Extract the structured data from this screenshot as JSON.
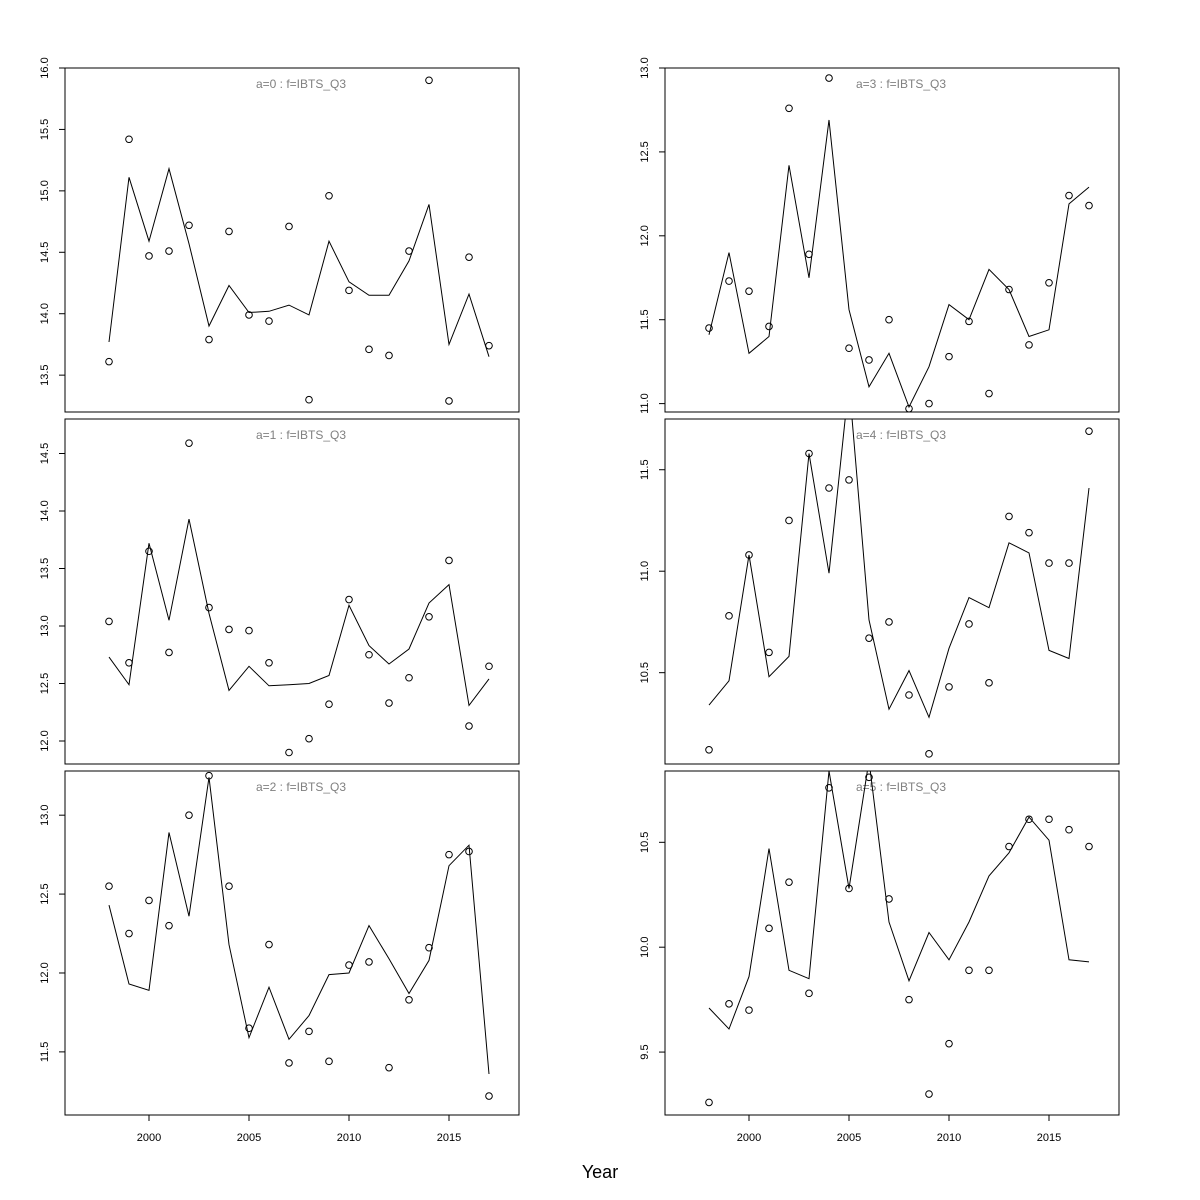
{
  "figure": {
    "xlabel": "Year"
  },
  "chart_data": [
    {
      "type": "line",
      "title": "a=0  :  f=IBTS_Q3",
      "x": [
        1998,
        1999,
        2000,
        2001,
        2002,
        2003,
        2004,
        2005,
        2006,
        2007,
        2008,
        2009,
        2010,
        2011,
        2012,
        2013,
        2014,
        2015,
        2016,
        2017
      ],
      "series": [
        {
          "style": "line",
          "values": [
            13.77,
            15.11,
            14.59,
            15.18,
            14.57,
            13.9,
            14.23,
            14.01,
            14.02,
            14.07,
            13.99,
            14.59,
            14.26,
            14.15,
            14.15,
            14.43,
            14.89,
            13.75,
            14.16,
            13.65
          ]
        },
        {
          "style": "points",
          "values": [
            13.61,
            15.42,
            14.47,
            14.51,
            14.72,
            13.79,
            14.67,
            13.99,
            13.94,
            14.71,
            13.3,
            14.96,
            14.19,
            13.71,
            13.66,
            14.51,
            15.9,
            13.29,
            14.46,
            13.74
          ]
        }
      ],
      "ylim": [
        13.2,
        16.0
      ],
      "yticks": [
        13.5,
        14.0,
        14.5,
        15.0,
        15.5,
        16.0
      ],
      "xticks": [
        2000,
        2005,
        2010,
        2015
      ],
      "show_xticks": false
    },
    {
      "type": "line",
      "title": "a=3  :  f=IBTS_Q3",
      "x": [
        1998,
        1999,
        2000,
        2001,
        2002,
        2003,
        2004,
        2005,
        2006,
        2007,
        2008,
        2009,
        2010,
        2011,
        2012,
        2013,
        2014,
        2015,
        2016,
        2017
      ],
      "series": [
        {
          "style": "line",
          "values": [
            11.41,
            11.9,
            11.3,
            11.4,
            12.42,
            11.75,
            12.69,
            11.56,
            11.1,
            11.3,
            10.98,
            11.22,
            11.59,
            11.5,
            11.8,
            11.68,
            11.4,
            11.44,
            12.19,
            12.29
          ]
        },
        {
          "style": "points",
          "values": [
            11.45,
            11.73,
            11.67,
            11.46,
            12.76,
            11.89,
            12.94,
            11.33,
            11.26,
            11.5,
            10.97,
            11.0,
            11.28,
            11.49,
            11.06,
            11.68,
            11.35,
            11.72,
            12.24,
            12.18
          ]
        }
      ],
      "ylim": [
        10.95,
        13.0
      ],
      "yticks": [
        11.0,
        11.5,
        12.0,
        12.5,
        13.0
      ],
      "xticks": [
        2000,
        2005,
        2010,
        2015
      ],
      "show_xticks": false
    },
    {
      "type": "line",
      "title": "a=1  :  f=IBTS_Q3",
      "x": [
        1998,
        1999,
        2000,
        2001,
        2002,
        2003,
        2004,
        2005,
        2006,
        2007,
        2008,
        2009,
        2010,
        2011,
        2012,
        2013,
        2014,
        2015,
        2016,
        2017
      ],
      "series": [
        {
          "style": "line",
          "values": [
            12.73,
            12.49,
            13.72,
            13.05,
            13.93,
            13.11,
            12.44,
            12.65,
            12.48,
            12.49,
            12.5,
            12.57,
            13.18,
            12.83,
            12.67,
            12.8,
            13.2,
            13.36,
            12.31,
            12.54
          ]
        },
        {
          "style": "points",
          "values": [
            13.04,
            12.68,
            13.65,
            12.77,
            14.59,
            13.16,
            12.97,
            12.96,
            12.68,
            11.9,
            12.02,
            12.32,
            13.23,
            12.75,
            12.33,
            12.55,
            13.08,
            13.57,
            12.13,
            12.65
          ]
        }
      ],
      "ylim": [
        11.8,
        14.8
      ],
      "yticks": [
        12.0,
        12.5,
        13.0,
        13.5,
        14.0,
        14.5
      ],
      "xticks": [
        2000,
        2005,
        2010,
        2015
      ],
      "show_xticks": false
    },
    {
      "type": "line",
      "title": "a=4  :  f=IBTS_Q3",
      "x": [
        1998,
        1999,
        2000,
        2001,
        2002,
        2003,
        2004,
        2005,
        2006,
        2007,
        2008,
        2009,
        2010,
        2011,
        2012,
        2013,
        2014,
        2015,
        2016,
        2017
      ],
      "series": [
        {
          "style": "line",
          "values": [
            10.34,
            10.46,
            11.08,
            10.48,
            10.58,
            11.58,
            10.99,
            11.93,
            10.76,
            10.32,
            10.51,
            10.28,
            10.62,
            10.87,
            10.82,
            11.14,
            11.09,
            10.61,
            10.57,
            11.41
          ]
        },
        {
          "style": "points",
          "values": [
            10.12,
            10.78,
            11.08,
            10.6,
            11.25,
            11.58,
            11.41,
            11.45,
            10.67,
            10.75,
            10.39,
            10.1,
            10.43,
            10.74,
            10.45,
            11.27,
            11.19,
            11.04,
            11.04,
            11.69
          ]
        }
      ],
      "ylim": [
        10.05,
        11.75
      ],
      "yticks": [
        10.5,
        11.0,
        11.5
      ],
      "xticks": [
        2000,
        2005,
        2010,
        2015
      ],
      "show_xticks": false
    },
    {
      "type": "line",
      "title": "a=2  :  f=IBTS_Q3",
      "x": [
        1998,
        1999,
        2000,
        2001,
        2002,
        2003,
        2004,
        2005,
        2006,
        2007,
        2008,
        2009,
        2010,
        2011,
        2012,
        2013,
        2014,
        2015,
        2016,
        2017
      ],
      "series": [
        {
          "style": "line",
          "values": [
            12.43,
            11.93,
            11.89,
            12.89,
            12.36,
            13.24,
            12.18,
            11.59,
            11.91,
            11.58,
            11.73,
            11.99,
            12.0,
            12.3,
            12.09,
            11.87,
            12.08,
            12.68,
            12.81,
            11.36
          ]
        },
        {
          "style": "points",
          "values": [
            12.55,
            12.25,
            12.46,
            12.3,
            13.0,
            13.25,
            12.55,
            11.65,
            12.18,
            11.43,
            11.63,
            11.44,
            12.05,
            12.07,
            11.4,
            11.83,
            12.16,
            12.75,
            12.77,
            11.22
          ]
        }
      ],
      "ylim": [
        11.1,
        13.28
      ],
      "yticks": [
        11.5,
        12.0,
        12.5,
        13.0
      ],
      "xticks": [
        2000,
        2005,
        2010,
        2015
      ],
      "show_xticks": true
    },
    {
      "type": "line",
      "title": "a=5  :  f=IBTS_Q3",
      "x": [
        1998,
        1999,
        2000,
        2001,
        2002,
        2003,
        2004,
        2005,
        2006,
        2007,
        2008,
        2009,
        2010,
        2011,
        2012,
        2013,
        2014,
        2015,
        2016,
        2017
      ],
      "series": [
        {
          "style": "line",
          "values": [
            9.71,
            9.61,
            9.86,
            10.47,
            9.89,
            9.85,
            10.84,
            10.28,
            10.89,
            10.12,
            9.84,
            10.07,
            9.94,
            10.12,
            10.34,
            10.45,
            10.62,
            10.51,
            9.94,
            9.93
          ]
        },
        {
          "style": "points",
          "values": [
            9.26,
            9.73,
            9.7,
            10.09,
            10.31,
            9.78,
            10.76,
            10.28,
            10.81,
            10.23,
            9.75,
            9.3,
            9.54,
            9.89,
            9.89,
            10.48,
            10.61,
            10.61,
            10.56,
            10.48
          ]
        }
      ],
      "ylim": [
        9.2,
        10.84
      ],
      "yticks": [
        9.5,
        10.0,
        10.5
      ],
      "xticks": [
        2000,
        2005,
        2010,
        2015
      ],
      "show_xticks": true
    }
  ]
}
